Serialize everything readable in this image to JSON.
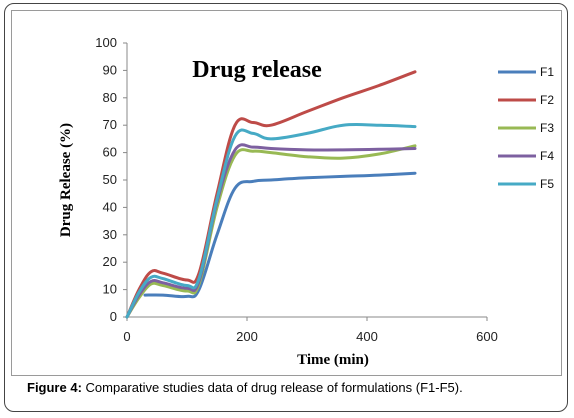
{
  "caption": {
    "label": "Figure 4:",
    "text": " Comparative studies data of drug release of formulations (F1-F5)."
  },
  "chart_data": {
    "type": "line",
    "title": "Drug release",
    "xlabel": "Time (min)",
    "ylabel": "Drug Release (%)",
    "xlim": [
      0,
      600
    ],
    "ylim": [
      0,
      100
    ],
    "xticks": [
      0,
      200,
      400,
      600
    ],
    "yticks": [
      0,
      10,
      20,
      30,
      40,
      50,
      60,
      70,
      80,
      90,
      100
    ],
    "grid": false,
    "legend_position": "right",
    "series": [
      {
        "name": "F1",
        "color": "#4a7ebb",
        "x": [
          30,
          60,
          100,
          120,
          150,
          180,
          210,
          240,
          300,
          360,
          420,
          480
        ],
        "y": [
          8,
          8,
          7.5,
          10,
          30,
          47,
          49.5,
          50,
          50.8,
          51.3,
          51.8,
          52.5
        ]
      },
      {
        "name": "F2",
        "color": "#be4b48",
        "x": [
          0,
          20,
          40,
          60,
          100,
          120,
          150,
          180,
          210,
          240,
          300,
          360,
          420,
          480
        ],
        "y": [
          0,
          10,
          16.5,
          16,
          13.5,
          16,
          45,
          70,
          71,
          70,
          75,
          80,
          84.5,
          89.5
        ]
      },
      {
        "name": "F3",
        "color": "#98b954",
        "x": [
          0,
          20,
          40,
          60,
          100,
          120,
          150,
          180,
          210,
          240,
          300,
          360,
          420,
          480
        ],
        "y": [
          0,
          7,
          12,
          11.5,
          9.5,
          12,
          40,
          59,
          60.5,
          60,
          58.5,
          58,
          59.5,
          62.5
        ]
      },
      {
        "name": "F4",
        "color": "#7d60a0",
        "x": [
          0,
          20,
          40,
          60,
          100,
          120,
          150,
          180,
          210,
          240,
          300,
          360,
          420,
          480
        ],
        "y": [
          0,
          8,
          13,
          12.5,
          10.5,
          13,
          42,
          61,
          62,
          61.5,
          61,
          61,
          61.2,
          61.5
        ]
      },
      {
        "name": "F5",
        "color": "#46aac5",
        "x": [
          0,
          20,
          40,
          60,
          100,
          120,
          150,
          180,
          210,
          240,
          300,
          360,
          420,
          480
        ],
        "y": [
          0,
          9,
          14.5,
          14,
          11.5,
          14,
          43,
          66,
          67,
          65,
          67,
          70,
          70,
          69.5
        ]
      }
    ]
  }
}
